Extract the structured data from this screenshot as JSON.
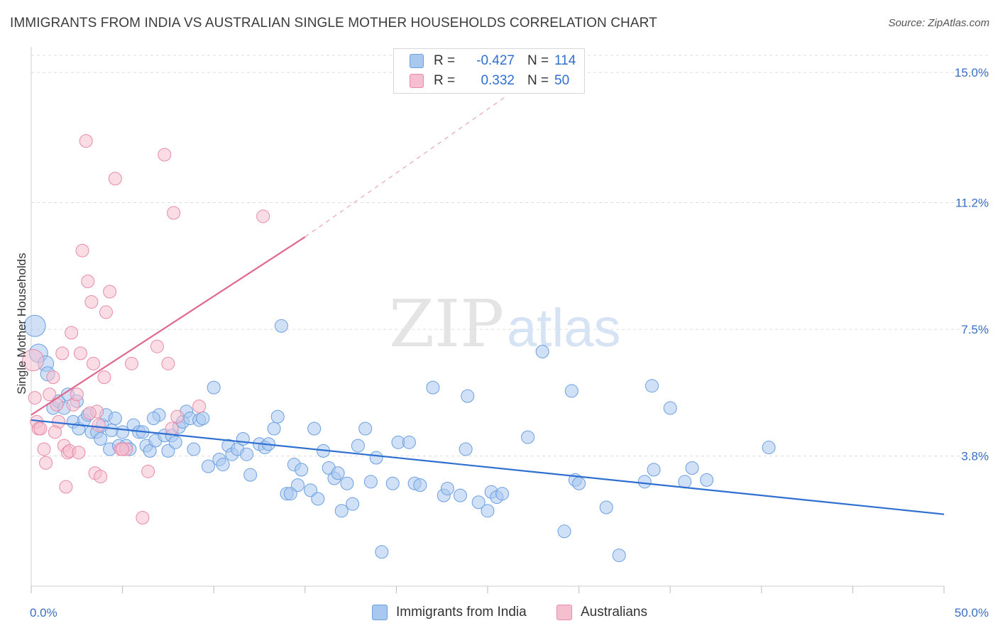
{
  "header": {
    "title": "IMMIGRANTS FROM INDIA VS AUSTRALIAN SINGLE MOTHER HOUSEHOLDS CORRELATION CHART",
    "source": "Source: ZipAtlas.com"
  },
  "watermark": {
    "zip": "ZIP",
    "atlas": "atlas"
  },
  "legend": {
    "rows": [
      {
        "r_label": "R =",
        "r_value": "-0.427",
        "n_label": "N =",
        "n_value": "114",
        "color": "#a9c8f0",
        "border": "#6a9fe0"
      },
      {
        "r_label": "R =",
        "r_value": "0.332",
        "n_label": "N =",
        "n_value": "50",
        "color": "#f6bfd0",
        "border": "#e88aa8"
      }
    ]
  },
  "bottom_legend": {
    "items": [
      {
        "label": "Immigrants from India",
        "color": "#a9c8f0",
        "border": "#6a9fe0"
      },
      {
        "label": "Australians",
        "color": "#f6bfd0",
        "border": "#e88aa8"
      }
    ]
  },
  "chart_data": {
    "type": "scatter",
    "title": "IMMIGRANTS FROM INDIA VS AUSTRALIAN SINGLE MOTHER HOUSEHOLDS CORRELATION CHART",
    "xlabel": "",
    "ylabel": "Single Mother Households",
    "xlim": [
      0,
      50
    ],
    "ylim": [
      0,
      15.5
    ],
    "x_tick_labels": [
      "0.0%",
      "50.0%"
    ],
    "y_ticks": [
      3.8,
      7.5,
      11.2,
      15.0
    ],
    "y_tick_labels": [
      "3.8%",
      "7.5%",
      "11.2%",
      "15.0%"
    ],
    "grid": true,
    "legend_position": "top-center",
    "series": [
      {
        "name": "Immigrants from India",
        "color": "#6a9fe0",
        "fill": "#a9c8f0",
        "trend": {
          "x": [
            0,
            50
          ],
          "y": [
            4.85,
            2.1
          ],
          "color": "#2f6fd0"
        },
        "points": [
          [
            0.2,
            7.6,
            14
          ],
          [
            0.4,
            6.8,
            12
          ],
          [
            0.8,
            6.5,
            10
          ],
          [
            0.9,
            6.2,
            9
          ],
          [
            1.2,
            5.2,
            8
          ],
          [
            1.5,
            5.4,
            8
          ],
          [
            1.8,
            5.2,
            8
          ],
          [
            2.0,
            5.6,
            8
          ],
          [
            2.3,
            4.8,
            8
          ],
          [
            2.6,
            4.6,
            8
          ],
          [
            2.9,
            4.85,
            8
          ],
          [
            3.1,
            5.0,
            8
          ],
          [
            3.3,
            4.5,
            8
          ],
          [
            3.6,
            4.5,
            8
          ],
          [
            3.9,
            4.7,
            8
          ],
          [
            4.1,
            5.0,
            8
          ],
          [
            4.3,
            4.0,
            8
          ],
          [
            4.6,
            4.9,
            8
          ],
          [
            4.8,
            4.1,
            8
          ],
          [
            5.0,
            4.5,
            8
          ],
          [
            5.2,
            4.1,
            8
          ],
          [
            5.4,
            4.0,
            8
          ],
          [
            5.6,
            4.7,
            8
          ],
          [
            5.9,
            4.5,
            8
          ],
          [
            6.1,
            4.5,
            8
          ],
          [
            6.3,
            4.1,
            8
          ],
          [
            6.5,
            3.95,
            8
          ],
          [
            6.8,
            4.25,
            8
          ],
          [
            7.0,
            5.0,
            8
          ],
          [
            7.3,
            4.4,
            8
          ],
          [
            7.5,
            3.95,
            8
          ],
          [
            7.7,
            4.4,
            8
          ],
          [
            7.9,
            4.2,
            8
          ],
          [
            8.1,
            4.65,
            8
          ],
          [
            8.3,
            4.8,
            8
          ],
          [
            8.5,
            5.1,
            8
          ],
          [
            8.7,
            4.9,
            8
          ],
          [
            8.9,
            4.0,
            8
          ],
          [
            9.2,
            4.85,
            8
          ],
          [
            9.4,
            4.9,
            8
          ],
          [
            9.7,
            3.5,
            8
          ],
          [
            10.0,
            5.8,
            8
          ],
          [
            10.3,
            3.7,
            8
          ],
          [
            10.5,
            3.55,
            8
          ],
          [
            10.8,
            4.1,
            8
          ],
          [
            11.0,
            3.85,
            8
          ],
          [
            11.3,
            4.0,
            8
          ],
          [
            11.6,
            4.3,
            8
          ],
          [
            11.8,
            3.85,
            8
          ],
          [
            12.0,
            3.25,
            8
          ],
          [
            12.5,
            4.15,
            8
          ],
          [
            12.8,
            4.05,
            8
          ],
          [
            13.0,
            4.15,
            8
          ],
          [
            13.3,
            4.6,
            8
          ],
          [
            13.5,
            4.95,
            8
          ],
          [
            13.7,
            7.6,
            8
          ],
          [
            14.0,
            2.7,
            8
          ],
          [
            14.2,
            2.7,
            8
          ],
          [
            14.4,
            3.55,
            8
          ],
          [
            14.6,
            2.95,
            8
          ],
          [
            14.8,
            3.4,
            8
          ],
          [
            15.3,
            2.8,
            8
          ],
          [
            15.5,
            4.6,
            8
          ],
          [
            15.7,
            2.55,
            8
          ],
          [
            16.0,
            3.95,
            8
          ],
          [
            16.3,
            3.45,
            8
          ],
          [
            16.6,
            3.15,
            8
          ],
          [
            16.8,
            3.3,
            8
          ],
          [
            17.0,
            2.2,
            8
          ],
          [
            17.3,
            3.0,
            8
          ],
          [
            17.6,
            2.4,
            8
          ],
          [
            17.9,
            4.1,
            8
          ],
          [
            18.3,
            4.6,
            8
          ],
          [
            18.6,
            3.05,
            8
          ],
          [
            18.9,
            3.75,
            8
          ],
          [
            19.2,
            1.0,
            8
          ],
          [
            19.8,
            3.0,
            8
          ],
          [
            20.1,
            4.2,
            8
          ],
          [
            20.7,
            4.2,
            8
          ],
          [
            21.0,
            3.0,
            8
          ],
          [
            21.3,
            2.95,
            8
          ],
          [
            22.0,
            5.8,
            8
          ],
          [
            22.6,
            2.65,
            8
          ],
          [
            22.8,
            2.85,
            8
          ],
          [
            23.8,
            4.0,
            8
          ],
          [
            23.5,
            2.65,
            8
          ],
          [
            23.9,
            5.55,
            8
          ],
          [
            24.5,
            2.45,
            8
          ],
          [
            25.0,
            2.2,
            8
          ],
          [
            25.2,
            2.75,
            8
          ],
          [
            25.5,
            2.6,
            8
          ],
          [
            25.8,
            2.7,
            8
          ],
          [
            27.2,
            4.35,
            8
          ],
          [
            28.0,
            6.85,
            8
          ],
          [
            29.2,
            1.6,
            8
          ],
          [
            29.6,
            5.7,
            8
          ],
          [
            29.8,
            3.1,
            8
          ],
          [
            30.0,
            3.0,
            8
          ],
          [
            31.5,
            2.3,
            8
          ],
          [
            32.2,
            0.9,
            8
          ],
          [
            33.6,
            3.05,
            8
          ],
          [
            34.0,
            5.85,
            8
          ],
          [
            34.1,
            3.4,
            8
          ],
          [
            35.0,
            5.2,
            8
          ],
          [
            35.8,
            3.05,
            8
          ],
          [
            36.2,
            3.45,
            8
          ],
          [
            37.0,
            3.1,
            8
          ],
          [
            40.4,
            4.05,
            8
          ],
          [
            2.5,
            5.4,
            8
          ],
          [
            4.4,
            4.55,
            8
          ],
          [
            6.7,
            4.9,
            8
          ],
          [
            3.8,
            4.3,
            8
          ]
        ]
      },
      {
        "name": "Australians",
        "color": "#e88aa8",
        "fill": "#f6bfd0",
        "trend": {
          "x": [
            0,
            15
          ],
          "y": [
            5.0,
            10.2
          ],
          "dash_to": [
            26,
            14.3
          ],
          "color": "#e0688f"
        },
        "points": [
          [
            0.1,
            6.6,
            14
          ],
          [
            0.2,
            5.5,
            8
          ],
          [
            0.3,
            4.8,
            8
          ],
          [
            0.4,
            4.6,
            8
          ],
          [
            0.5,
            4.6,
            8
          ],
          [
            0.7,
            4.0,
            8
          ],
          [
            0.8,
            3.6,
            8
          ],
          [
            1.0,
            5.6,
            8
          ],
          [
            1.2,
            6.1,
            8
          ],
          [
            1.4,
            5.3,
            8
          ],
          [
            1.5,
            4.8,
            8
          ],
          [
            1.7,
            6.8,
            8
          ],
          [
            1.8,
            4.1,
            8
          ],
          [
            1.9,
            2.9,
            8
          ],
          [
            2.0,
            3.9,
            8
          ],
          [
            2.1,
            3.95,
            8
          ],
          [
            2.2,
            7.4,
            8
          ],
          [
            2.3,
            5.3,
            8
          ],
          [
            2.5,
            5.6,
            8
          ],
          [
            2.6,
            3.9,
            8
          ],
          [
            2.7,
            6.8,
            8
          ],
          [
            2.8,
            9.8,
            8
          ],
          [
            3.0,
            13.0,
            8
          ],
          [
            3.1,
            8.9,
            8
          ],
          [
            3.3,
            8.3,
            8
          ],
          [
            3.4,
            6.5,
            8
          ],
          [
            3.5,
            3.3,
            8
          ],
          [
            3.6,
            5.1,
            8
          ],
          [
            3.7,
            4.7,
            8
          ],
          [
            3.8,
            3.2,
            8
          ],
          [
            4.0,
            6.1,
            8
          ],
          [
            4.1,
            8.0,
            8
          ],
          [
            4.3,
            8.6,
            8
          ],
          [
            4.6,
            11.9,
            8
          ],
          [
            4.9,
            4.0,
            8
          ],
          [
            5.2,
            4.0,
            8
          ],
          [
            5.5,
            6.5,
            8
          ],
          [
            6.1,
            2.0,
            8
          ],
          [
            6.4,
            3.35,
            8
          ],
          [
            6.9,
            7.0,
            8
          ],
          [
            7.3,
            12.6,
            8
          ],
          [
            7.5,
            6.5,
            8
          ],
          [
            7.7,
            4.6,
            8
          ],
          [
            7.8,
            10.9,
            8
          ],
          [
            8.0,
            4.95,
            8
          ],
          [
            9.2,
            5.25,
            8
          ],
          [
            12.7,
            10.8,
            8
          ],
          [
            3.2,
            5.05,
            8
          ],
          [
            5.0,
            4.0,
            8
          ],
          [
            1.3,
            4.5,
            8
          ]
        ]
      }
    ]
  }
}
